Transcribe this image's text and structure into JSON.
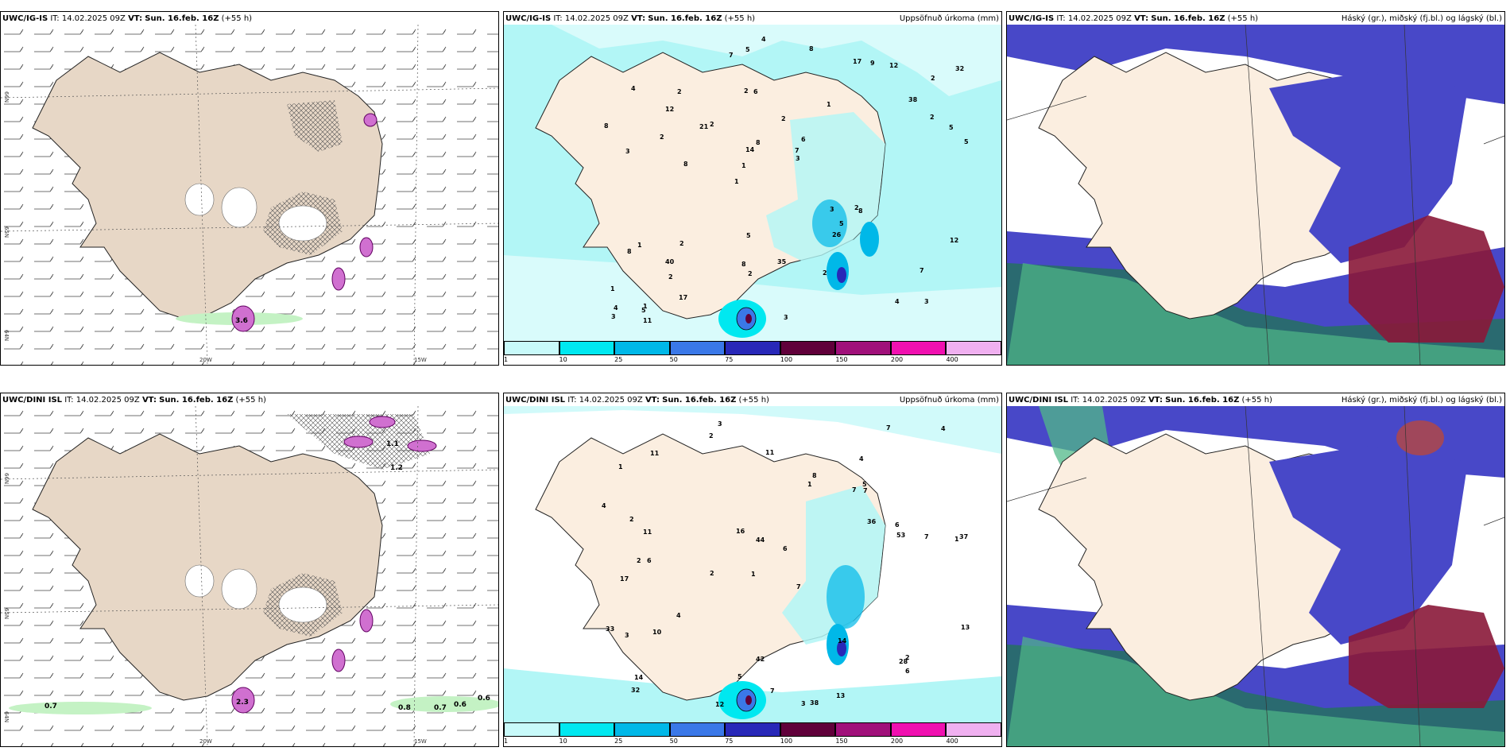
{
  "rows": [
    {
      "model": "UWC/IG-IS",
      "panels": [
        {
          "id": "wind",
          "model": "UWC/IG-IS",
          "it_label": "IT:",
          "it": "14.02.2025 09Z",
          "vt_label": "VT:",
          "vt": "Sun. 16.feb. 16Z",
          "lead": "(+55 h)",
          "right": ""
        },
        {
          "id": "precip",
          "model": "UWC/IG-IS",
          "it_label": "IT:",
          "it": "14.02.2025 09Z",
          "vt_label": "VT:",
          "vt": "Sun. 16.feb. 16Z",
          "lead": "(+55 h)",
          "right": "Uppsöfnuð úrkoma (mm)"
        },
        {
          "id": "cloud",
          "model": "UWC/IG-IS",
          "it_label": "IT:",
          "it": "14.02.2025 09Z",
          "vt_label": "VT:",
          "vt": "Sun. 16.feb. 16Z",
          "lead": "(+55 h)",
          "right": "Háský (gr.), miðský (fj.bl.) og lágský (bl.)"
        }
      ],
      "precip_values": [
        "3",
        "3",
        "2",
        "1",
        "1",
        "1",
        "2",
        "2",
        "1",
        "2",
        "1",
        "2",
        "6",
        "6",
        "8",
        "4",
        "5",
        "5",
        "3",
        "2",
        "1",
        "8",
        "14",
        "2",
        "17",
        "2",
        "4",
        "7",
        "2",
        "3",
        "21",
        "2",
        "26",
        "17",
        "5",
        "7",
        "4",
        "2",
        "3",
        "8",
        "38",
        "32",
        "5",
        "2",
        "40",
        "11",
        "3",
        "35",
        "12",
        "4",
        "8",
        "8",
        "12",
        "9",
        "5",
        "8",
        "7",
        "8",
        "12",
        "5"
      ],
      "wind_labels": [
        "3.6"
      ],
      "grid": [
        "20W",
        "15W",
        "65N",
        "64N",
        "66N"
      ]
    },
    {
      "model": "UWC/DINI ISL",
      "panels": [
        {
          "id": "wind",
          "model": "UWC/DINI ISL",
          "it_label": "IT:",
          "it": "14.02.2025 09Z",
          "vt_label": "VT:",
          "vt": "Sun. 16.feb. 16Z",
          "lead": "(+55 h)",
          "right": ""
        },
        {
          "id": "precip",
          "model": "UWC/DINI ISL",
          "it_label": "IT:",
          "it": "14.02.2025 09Z",
          "vt_label": "VT:",
          "vt": "Sun. 16.feb. 16Z",
          "lead": "(+55 h)",
          "right": "Uppsöfnuð úrkoma (mm)"
        },
        {
          "id": "cloud",
          "model": "UWC/DINI ISL",
          "it_label": "IT:",
          "it": "14.02.2025 09Z",
          "vt_label": "VT:",
          "vt": "Sun. 16.feb. 16Z",
          "lead": "(+55 h)",
          "right": "Háský (gr.), miðský (fj.bl.) og lágský (bl.)"
        }
      ],
      "precip_values": [
        "3",
        "4",
        "1",
        "1",
        "7",
        "6",
        "1",
        "7",
        "17",
        "1",
        "6",
        "32",
        "2",
        "2",
        "3",
        "38",
        "42",
        "7",
        "36",
        "4",
        "11",
        "2",
        "37",
        "7",
        "33",
        "2",
        "44",
        "53",
        "2",
        "3",
        "28",
        "8",
        "10",
        "16",
        "14",
        "13",
        "6",
        "5",
        "4",
        "11",
        "14",
        "12",
        "13",
        "11",
        "7",
        "7",
        "6",
        "5",
        "4"
      ],
      "wind_labels": [
        "1.1",
        "1.2",
        "2.3",
        "0.7",
        "0.8",
        "0.7",
        "0.6",
        "0.6"
      ],
      "grid": [
        "20W",
        "15W",
        "65N",
        "64N",
        "66N"
      ]
    }
  ],
  "legend": {
    "labels": [
      "1",
      "10",
      "25",
      "50",
      "75",
      "100",
      "150",
      "200",
      "400"
    ],
    "colors": [
      "#c8fafa",
      "#00e8f0",
      "#00b8e8",
      "#3a78e8",
      "#2828b8",
      "#60003a",
      "#a0107a",
      "#f010b0",
      "#f0b0f0"
    ]
  },
  "colors": {
    "land": "#fbeee0",
    "sea_precip": "#b2f6f6",
    "cloud_low": "#4848c8",
    "cloud_high": "#50b888",
    "cloud_mid": "#8a1838"
  }
}
